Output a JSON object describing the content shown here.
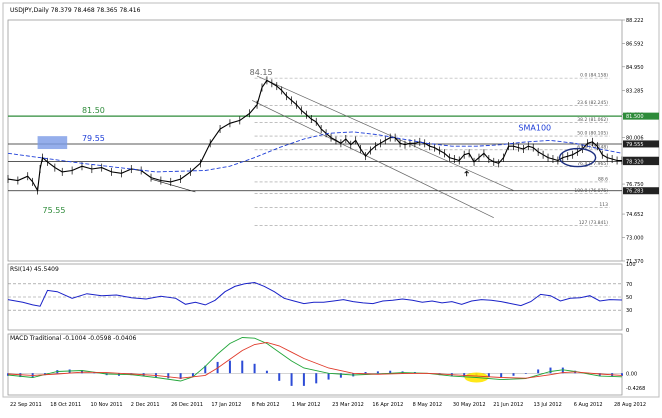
{
  "colors": {
    "price": "#000000",
    "sma": "#1f3fd8",
    "rsi": "#1a22c8",
    "macd_hist": "#2c4bd6",
    "macd_line": "#22a63a",
    "signal_line": "#e03a2a",
    "support_green": "#2e8b3a",
    "resistance_fill": "#7a9ae6",
    "highlight_yellow": "#ffe600",
    "fib_dash": "#9a9a9a",
    "channel": "#666666"
  },
  "chart_data": [
    {
      "type": "candlestick",
      "title": "USDJPY,Daily  78.379 78.468 78.365 78.416",
      "y_ticks": [
        "88.222",
        "86.592",
        "84.950",
        "83.285",
        "81.620",
        "80.006",
        "78.320",
        "76.750",
        "74.652",
        "73.000",
        "71.370"
      ],
      "ylim": [
        71.37,
        88.222
      ],
      "x_labels": [
        "22 Sep 2011",
        "18 Oct 2011",
        "10 Nov 2011",
        "2 Dec 2011",
        "26 Dec 2011",
        "17 Jan 2012",
        "8 Feb 2012",
        "1 Mar 2012",
        "23 Mar 2012",
        "16 Apr 2012",
        "8 May 2012",
        "30 May 2012",
        "21 Jun 2012",
        "13 Jul 2012",
        "6 Aug 2012",
        "28 Aug 2012"
      ],
      "series": [
        {
          "name": "Price (close)",
          "x": [
            0,
            4,
            8,
            10,
            12,
            13,
            14,
            16,
            19,
            22,
            26,
            30,
            34,
            38,
            42,
            46,
            50,
            54,
            58,
            62,
            66,
            70,
            74,
            78,
            82,
            86,
            90,
            94,
            98,
            101,
            103,
            105,
            107,
            109,
            111,
            113,
            115,
            117,
            119,
            121,
            123,
            125,
            127,
            129,
            131,
            133,
            135,
            137,
            139,
            141,
            143,
            145,
            147,
            149,
            151,
            153,
            155,
            157,
            159,
            161,
            163,
            165,
            167,
            169,
            171,
            173,
            175,
            177,
            179,
            181,
            183,
            185,
            187,
            189,
            191,
            193,
            195,
            197,
            199,
            201,
            203,
            205,
            207,
            209,
            211,
            213,
            215,
            217,
            219,
            221,
            223,
            225,
            227,
            229,
            231,
            233,
            235,
            237,
            239,
            241,
            243,
            245,
            247,
            249
          ],
          "close": [
            77.1,
            77.0,
            77.3,
            76.9,
            76.3,
            77.8,
            78.6,
            78.3,
            77.9,
            77.6,
            77.7,
            78.0,
            77.8,
            77.9,
            77.6,
            77.5,
            77.8,
            77.7,
            77.2,
            77.0,
            76.9,
            77.1,
            77.6,
            78.2,
            79.6,
            80.6,
            81.0,
            81.2,
            81.7,
            82.3,
            83.5,
            84.0,
            83.8,
            83.6,
            83.3,
            82.9,
            82.6,
            82.3,
            81.9,
            81.6,
            81.3,
            81.1,
            80.6,
            80.3,
            80.0,
            79.8,
            79.6,
            79.9,
            79.5,
            79.8,
            79.2,
            78.7,
            79.1,
            79.4,
            79.6,
            79.8,
            80.0,
            80.0,
            79.6,
            79.5,
            79.6,
            79.6,
            79.7,
            79.6,
            79.4,
            79.3,
            79.1,
            78.9,
            78.6,
            78.5,
            78.4,
            78.8,
            78.9,
            78.3,
            78.6,
            78.9,
            78.5,
            78.3,
            78.2,
            78.6,
            79.4,
            79.4,
            79.3,
            79.2,
            79.4,
            79.3,
            79.0,
            78.8,
            78.6,
            78.5,
            78.4,
            78.6,
            78.7,
            78.8,
            79.0,
            79.2,
            79.6,
            79.7,
            79.4,
            78.8,
            78.6,
            78.5,
            78.4,
            78.4
          ]
        },
        {
          "name": "SMA100",
          "x": [
            0,
            30,
            60,
            80,
            90,
            100,
            110,
            120,
            130,
            140,
            150,
            160,
            170,
            180,
            190,
            200,
            210,
            220,
            230,
            240,
            249
          ],
          "y": [
            78.9,
            78.2,
            77.6,
            77.7,
            78.0,
            78.6,
            79.3,
            79.9,
            80.3,
            80.4,
            80.2,
            79.9,
            79.6,
            79.4,
            79.4,
            79.5,
            79.7,
            79.8,
            79.6,
            79.2,
            78.9
          ]
        }
      ],
      "annotations": [
        {
          "text": "84.15",
          "x": 98,
          "y": 84.15
        },
        {
          "text": "81.50",
          "x": 30,
          "y": 81.5
        },
        {
          "text": "79.55",
          "x": 30,
          "y": 79.55
        },
        {
          "text": "75.55",
          "x": 14,
          "y": 75.55
        },
        {
          "text": "SMA100",
          "x": 207,
          "y": 80.3
        }
      ],
      "hlines": [
        {
          "y": 81.5,
          "style": "solid",
          "color": "green"
        },
        {
          "y": 79.55,
          "style": "solid"
        },
        {
          "y": 78.32,
          "style": "solid"
        },
        {
          "y": 76.28,
          "style": "solid"
        }
      ],
      "fib_levels": [
        {
          "label": "0.0 (84.158)",
          "y": 84.158
        },
        {
          "label": "23.6 (82.245)",
          "y": 82.245
        },
        {
          "label": "38.2 (81.062)",
          "y": 81.062
        },
        {
          "label": "50.0 (80.105)",
          "y": 80.105
        },
        {
          "label": "61.8 (79.148)",
          "y": 79.148
        },
        {
          "label": "76.4 (77.965)",
          "y": 77.965
        },
        {
          "label": "88.6",
          "y": 76.9
        },
        {
          "label": "100.0 (76.075)",
          "y": 76.075
        },
        {
          "label": "113",
          "y": 75.1
        },
        {
          "label": "127 (73.841)",
          "y": 73.841
        }
      ],
      "right_labels": [
        "81.500",
        "79.555",
        "78.416",
        "78.320",
        "76.283"
      ]
    },
    {
      "type": "line",
      "title": "RSI(14) 45.5409",
      "y_ticks": [
        "100",
        "70",
        "50",
        "30",
        "0"
      ],
      "ylim": [
        0,
        100
      ],
      "levels": [
        70,
        50,
        30
      ],
      "series": [
        {
          "name": "RSI(14)",
          "x": [
            0,
            6,
            10,
            13,
            16,
            20,
            26,
            32,
            38,
            44,
            50,
            56,
            62,
            68,
            72,
            76,
            80,
            84,
            88,
            92,
            96,
            100,
            104,
            108,
            112,
            116,
            120,
            124,
            128,
            132,
            136,
            140,
            144,
            148,
            152,
            156,
            160,
            164,
            168,
            172,
            176,
            180,
            184,
            188,
            192,
            196,
            200,
            204,
            208,
            212,
            216,
            220,
            224,
            228,
            232,
            236,
            240,
            244,
            249
          ],
          "y": [
            46,
            42,
            38,
            36,
            60,
            58,
            48,
            55,
            52,
            53,
            49,
            47,
            51,
            48,
            39,
            42,
            38,
            45,
            58,
            66,
            70,
            72,
            66,
            58,
            48,
            44,
            40,
            42,
            42,
            44,
            46,
            43,
            41,
            40,
            44,
            45,
            47,
            45,
            42,
            44,
            41,
            43,
            39,
            44,
            46,
            45,
            43,
            40,
            37,
            43,
            54,
            52,
            44,
            48,
            49,
            52,
            44,
            46,
            45.5
          ]
        }
      ]
    },
    {
      "type": "line",
      "title": "MACD Traditional -0.1004 -0.0598 -0.0406",
      "y_ticks": [
        "0.00",
        "-0.4268"
      ],
      "ylim": [
        -0.62,
        1.12
      ],
      "series": [
        {
          "name": "MACD line",
          "x": [
            0,
            10,
            20,
            30,
            40,
            50,
            60,
            70,
            75,
            80,
            85,
            90,
            95,
            100,
            105,
            110,
            115,
            120,
            130,
            140,
            150,
            160,
            170,
            180,
            190,
            200,
            210,
            220,
            225,
            230,
            240,
            249
          ],
          "y": [
            -0.05,
            -0.12,
            0.05,
            0.08,
            -0.02,
            -0.04,
            -0.12,
            -0.22,
            -0.1,
            0.2,
            0.55,
            0.85,
            1.02,
            1.0,
            0.85,
            0.6,
            0.35,
            0.15,
            0.0,
            -0.05,
            -0.02,
            0.02,
            0.0,
            -0.08,
            -0.12,
            -0.18,
            -0.15,
            0.05,
            0.1,
            0.05,
            -0.08,
            -0.1
          ]
        },
        {
          "name": "Signal line",
          "x": [
            0,
            10,
            20,
            30,
            40,
            50,
            60,
            70,
            80,
            85,
            90,
            95,
            100,
            105,
            110,
            115,
            120,
            130,
            140,
            150,
            160,
            170,
            180,
            190,
            200,
            210,
            220,
            225,
            230,
            240,
            249
          ],
          "y": [
            -0.02,
            -0.06,
            -0.02,
            0.03,
            0.02,
            -0.02,
            -0.06,
            -0.14,
            -0.06,
            0.15,
            0.4,
            0.65,
            0.82,
            0.88,
            0.78,
            0.6,
            0.42,
            0.15,
            0.0,
            -0.03,
            -0.01,
            0.0,
            -0.04,
            -0.08,
            -0.12,
            -0.14,
            -0.04,
            0.02,
            0.04,
            -0.02,
            -0.06
          ]
        }
      ],
      "histogram": {
        "x": [
          0,
          5,
          10,
          15,
          20,
          25,
          30,
          35,
          40,
          45,
          50,
          55,
          60,
          65,
          70,
          75,
          80,
          85,
          90,
          95,
          100,
          105,
          110,
          115,
          120,
          125,
          130,
          135,
          140,
          145,
          150,
          155,
          160,
          165,
          170,
          175,
          180,
          185,
          190,
          195,
          200,
          205,
          210,
          215,
          220,
          225,
          230,
          235,
          240,
          245,
          249
        ],
        "y": [
          -0.04,
          -0.06,
          -0.07,
          -0.03,
          0.05,
          0.06,
          0.05,
          0.02,
          -0.03,
          -0.04,
          -0.03,
          -0.05,
          -0.07,
          -0.08,
          -0.09,
          -0.05,
          0.12,
          0.18,
          0.2,
          0.2,
          0.15,
          0.04,
          -0.12,
          -0.2,
          -0.2,
          -0.16,
          -0.1,
          -0.07,
          -0.05,
          0.02,
          0.03,
          0.04,
          0.03,
          0.02,
          0.0,
          -0.03,
          -0.05,
          -0.05,
          -0.05,
          -0.06,
          -0.06,
          -0.04,
          -0.01,
          0.06,
          0.09,
          0.09,
          0.04,
          0.0,
          -0.04,
          -0.05,
          -0.04
        ]
      }
    }
  ]
}
